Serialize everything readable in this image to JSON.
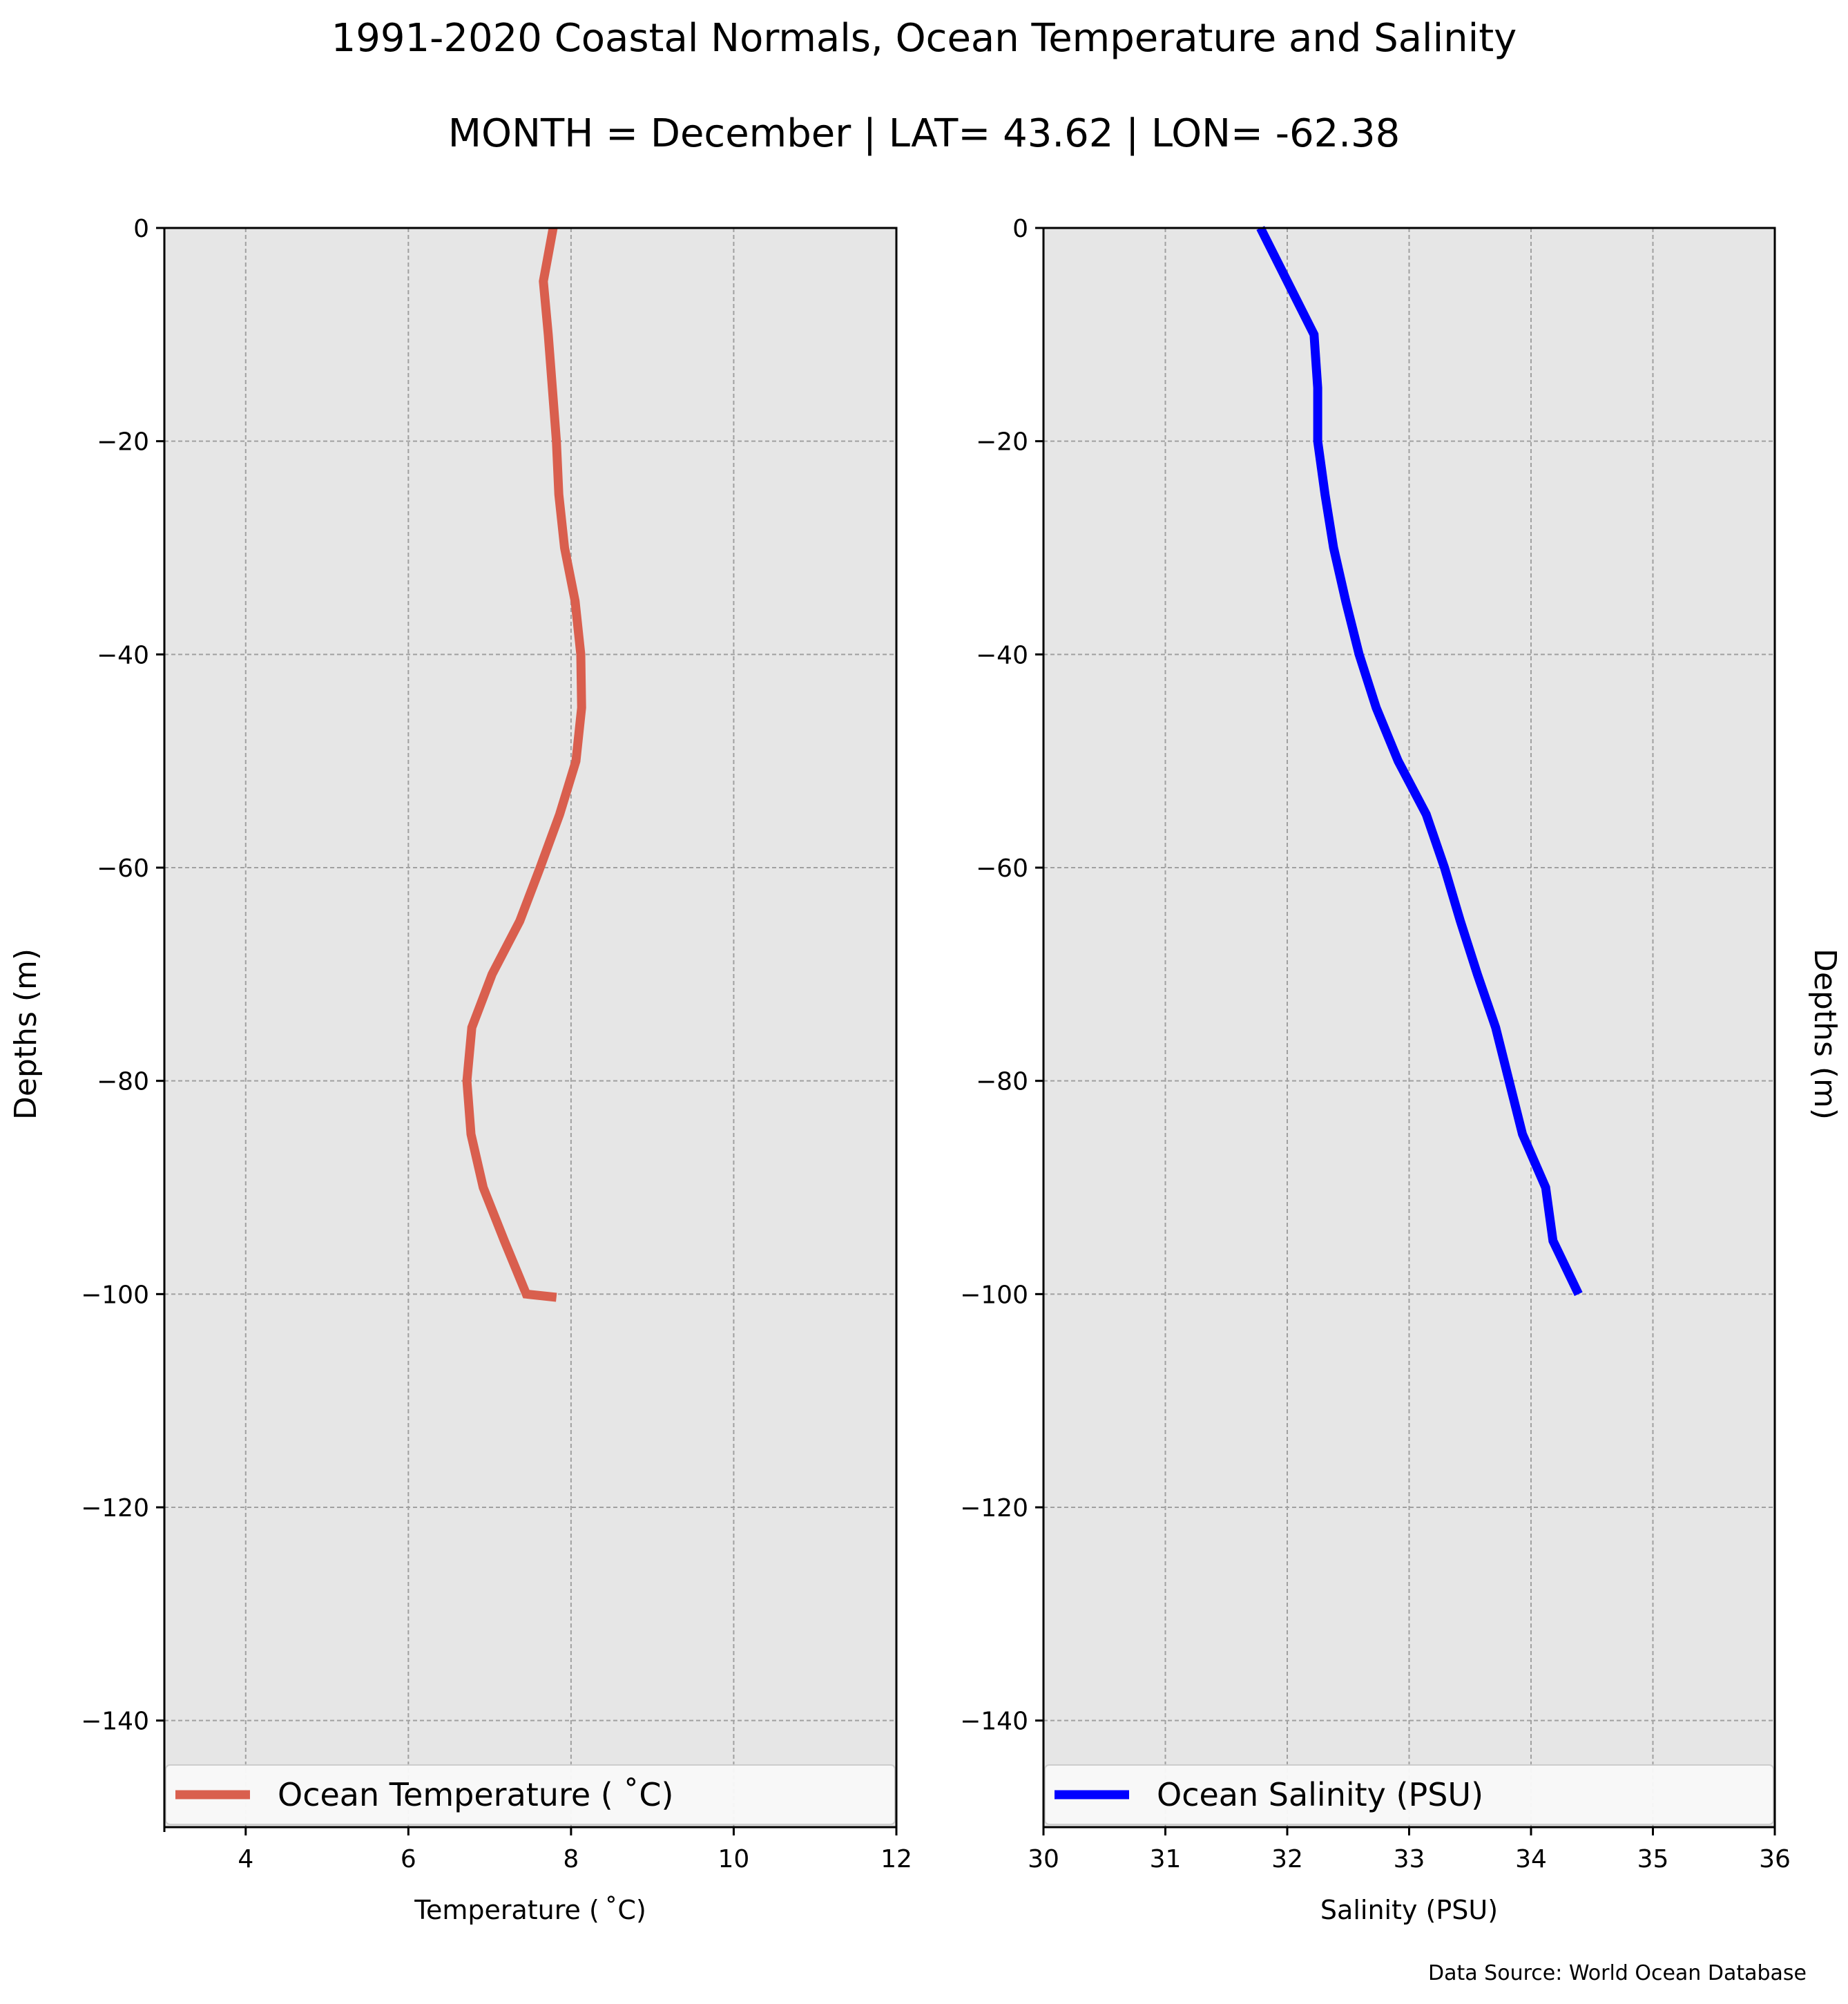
{
  "figure": {
    "title_line1": "1991-2020 Coastal Normals, Ocean Temperature and Salinity",
    "title_line2": "MONTH = December | LAT= 43.62 | LON= -62.38",
    "source": "Data Source: World Ocean Database",
    "background_color": "#ffffff",
    "axes_facecolor": "#e6e6e6"
  },
  "chart_data": [
    {
      "type": "line",
      "xlabel": "Temperature ($^\\circ$C)",
      "xlabel_display": "Temperature ( ˚C)",
      "ylabel": "Depths (m)",
      "xlim": [
        3,
        12
      ],
      "ylim": [
        -150,
        0
      ],
      "xticks": [
        4,
        6,
        8,
        10,
        12
      ],
      "xtick_labels": [
        "4",
        "6",
        "8",
        "10",
        "12"
      ],
      "yticks": [
        0,
        -20,
        -40,
        -60,
        -80,
        -100,
        -120,
        -140
      ],
      "ytick_labels": [
        "0",
        "−20",
        "−40",
        "−60",
        "−80",
        "−100",
        "−120",
        "−140"
      ],
      "grid": true,
      "legend_position": "lower center",
      "series": [
        {
          "name": "Ocean Temperature ( ˚C)",
          "color": "#d95f4e",
          "x": [
            7.78,
            7.66,
            7.72,
            7.77,
            7.82,
            7.85,
            7.92,
            8.05,
            8.12,
            8.13,
            8.06,
            7.86,
            7.62,
            7.37,
            7.03,
            6.78,
            6.72,
            6.77,
            6.92,
            7.18,
            7.45,
            7.82
          ],
          "y": [
            0,
            -5,
            -10,
            -15,
            -20,
            -25,
            -30,
            -35,
            -40,
            -45,
            -50,
            -55,
            -60,
            -65,
            -70,
            -75,
            -80,
            -85,
            -90,
            -95,
            -100,
            -100.3
          ]
        }
      ]
    },
    {
      "type": "line",
      "xlabel": "Salinity (PSU)",
      "ylabel": "Depths (m)",
      "xlim": [
        30,
        36
      ],
      "ylim": [
        -150,
        0
      ],
      "xticks": [
        30,
        31,
        32,
        33,
        34,
        35,
        36
      ],
      "xtick_labels": [
        "30",
        "31",
        "32",
        "33",
        "34",
        "35",
        "36"
      ],
      "yticks": [
        0,
        -20,
        -40,
        -60,
        -80,
        -100,
        -120,
        -140
      ],
      "ytick_labels": [
        "0",
        "−20",
        "−40",
        "−60",
        "−80",
        "−100",
        "−120",
        "−140"
      ],
      "grid": true,
      "legend_position": "lower center",
      "series": [
        {
          "name": "Ocean Salinity (PSU)",
          "color": "#0000ff",
          "x": [
            31.78,
            32.0,
            32.22,
            32.25,
            32.25,
            32.31,
            32.38,
            32.48,
            32.59,
            32.73,
            32.91,
            33.14,
            33.29,
            33.42,
            33.56,
            33.71,
            33.82,
            33.93,
            34.12,
            34.18,
            34.39
          ],
          "y": [
            0,
            -5,
            -10,
            -15,
            -20,
            -25,
            -30,
            -35,
            -40,
            -45,
            -50,
            -55,
            -60,
            -65,
            -70,
            -75,
            -80,
            -85,
            -90,
            -95,
            -100
          ]
        }
      ]
    }
  ]
}
